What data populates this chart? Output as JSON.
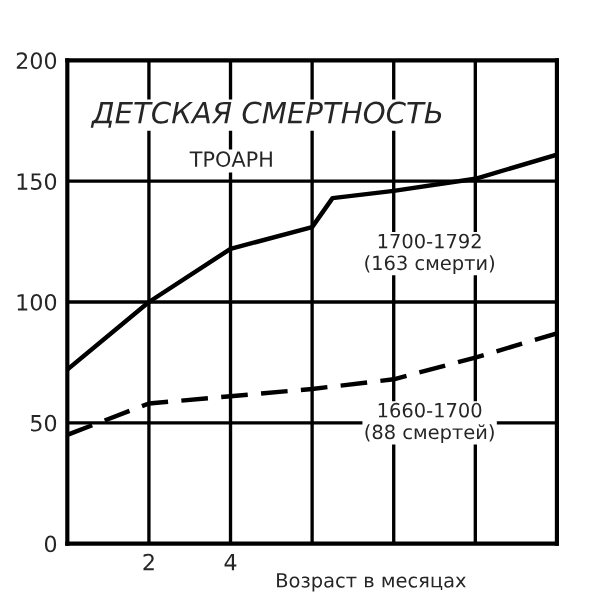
{
  "chart_data": {
    "type": "line",
    "title": "ДЕТСКАЯ СМЕРТНОСТЬ",
    "subtitle": "ТРОАРН",
    "xlabel": "Возраст в месяцах",
    "xlim": [
      0,
      12
    ],
    "xticks": [
      2,
      4,
      {
        "value": 6,
        "label": null
      },
      {
        "value": 8,
        "label": null
      },
      {
        "value": 10,
        "label": null
      }
    ],
    "ylim": [
      0,
      200
    ],
    "yticks": [
      0,
      50,
      100,
      150,
      200
    ],
    "grid": true,
    "marker": "none",
    "series": [
      {
        "color": "#000000",
        "line_style": "solid",
        "x": [
          0,
          2,
          4,
          6,
          6.5,
          8,
          10,
          12
        ],
        "values": [
          72,
          100,
          122,
          131,
          143,
          146,
          151,
          161
        ]
      },
      {
        "color": "#000000",
        "line_style": "dashed",
        "x": [
          0,
          2,
          4,
          6,
          8,
          10,
          12
        ],
        "values": [
          45,
          58,
          61,
          64,
          68,
          77,
          87
        ]
      }
    ],
    "annotations": [
      "1700-1792\n(163 смерти)",
      "1660-1700\n(88 смертей)"
    ]
  }
}
